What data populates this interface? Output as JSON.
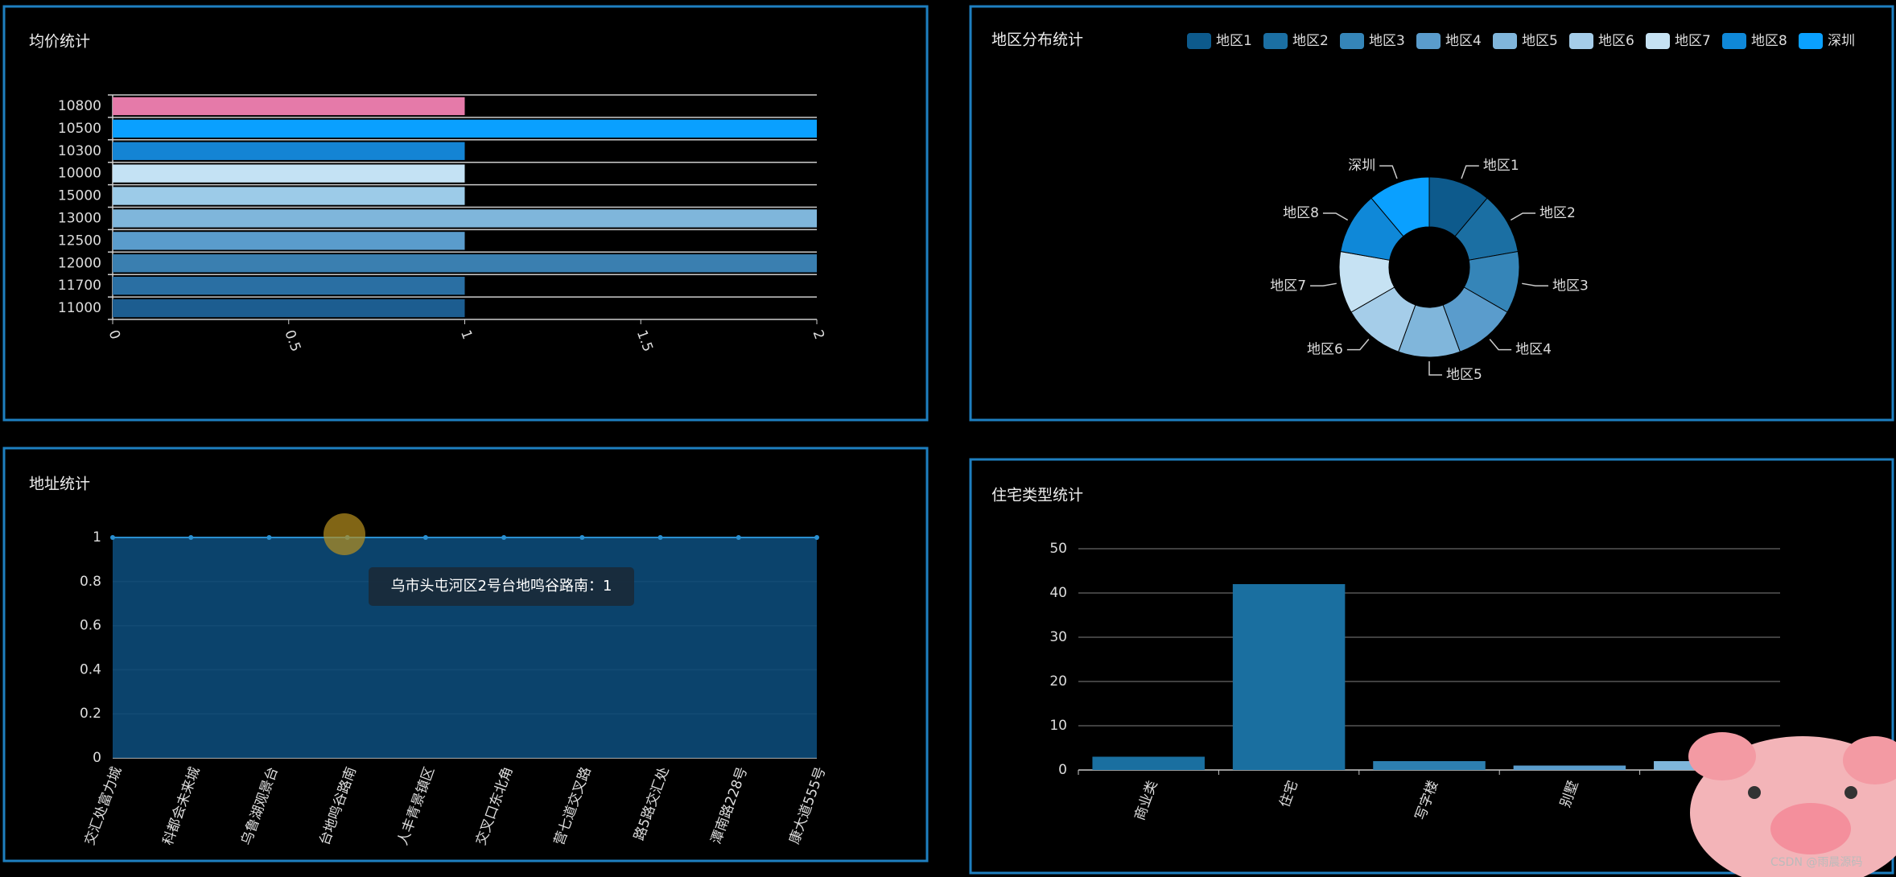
{
  "chart_data": [
    {
      "type": "hbar",
      "title": "均价统计",
      "categories": [
        "11000",
        "11700",
        "12000",
        "12500",
        "13000",
        "15000",
        "10000",
        "10300",
        "10500",
        "10800"
      ],
      "values": [
        1,
        1,
        2,
        1,
        2,
        1,
        1,
        1,
        2,
        1
      ],
      "colors": [
        "#1c5d90",
        "#2a6fa3",
        "#3a7fb0",
        "#5a9ccc",
        "#7fb6db",
        "#9ccbe8",
        "#c4e2f4",
        "#1484d4",
        "#0aa0ff",
        "#e57aa9"
      ],
      "xlim": [
        0,
        2
      ],
      "xticks": [
        0,
        0.5,
        1,
        1.5,
        2
      ]
    },
    {
      "type": "donut",
      "title": "地区分布统计",
      "categories": [
        "地区1",
        "地区2",
        "地区3",
        "地区4",
        "地区5",
        "地区6",
        "地区7",
        "地区8",
        "深圳"
      ],
      "values": [
        1,
        1,
        1,
        1,
        1,
        1,
        1,
        1,
        1
      ],
      "colors": [
        "#0d5a8c",
        "#1b6fa3",
        "#3585b8",
        "#5a9ccc",
        "#80b6db",
        "#a5cde9",
        "#c6e2f3",
        "#0f88d8",
        "#0aa0ff"
      ],
      "legend": "top-right"
    },
    {
      "type": "area",
      "title": "地址统计",
      "categories": [
        "交汇处富力城",
        "科都会未来城",
        "乌鲁湖观景台",
        "台地鸣谷路南",
        "人丰青景镇区",
        "交叉口东北角",
        "营七道交叉路",
        "路5路交汇处",
        "潭南路228号",
        "康大道555号"
      ],
      "values": [
        1,
        1,
        1,
        1,
        1,
        1,
        1,
        1,
        1,
        1
      ],
      "color": "#2a8fd0",
      "fill": "#0c4a78",
      "ylim": [
        0,
        1
      ],
      "yticks": [
        0,
        0.2,
        0.4,
        0.6,
        0.8,
        1
      ],
      "grid": true,
      "annotation": "乌市头屯河区2号台地鸣谷路南：1"
    },
    {
      "type": "bar",
      "title": "住宅类型统计",
      "categories": [
        "商业类",
        "住宅",
        "写字楼",
        "别墅",
        null
      ],
      "values": [
        3,
        42,
        2,
        1,
        2
      ],
      "colors": [
        "#1a6fa0",
        "#1a6fa0",
        "#2d7fb0",
        "#5a9ccc",
        "#7fb6db"
      ],
      "ylim": [
        0,
        50
      ],
      "yticks": [
        0,
        10,
        20,
        30,
        40,
        50
      ],
      "grid": true
    }
  ],
  "watermark": "CSDN @雨晨源码"
}
